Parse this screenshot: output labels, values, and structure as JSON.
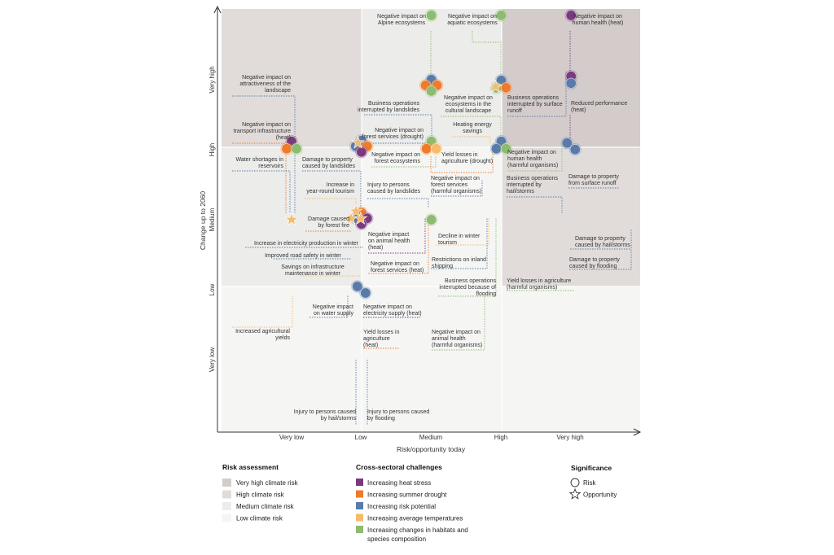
{
  "chart_data": {
    "type": "scatter",
    "title": "",
    "xlabel": "Risk/opportunity today",
    "ylabel": "Change up to 2060",
    "x_categories": [
      "Very low",
      "Low",
      "Medium",
      "High",
      "Very high"
    ],
    "y_categories": [
      "Very low",
      "Low",
      "Medium",
      "High",
      "Very high"
    ],
    "colors": {
      "zone_very_high": "#d3cccb",
      "zone_high": "#e1dcda",
      "zone_medium": "#ececea",
      "zone_low": "#f5f5f4",
      "heat": "#7b3a7e",
      "drought": "#ee7a2b",
      "risk": "#5a7aa8",
      "temp": "#f5bb6a",
      "habitat": "#8dbb70"
    },
    "legend": {
      "risk_assessment": {
        "title": "Risk assessment",
        "items": [
          {
            "label": "Very high climate risk",
            "color_key": "zone_very_high"
          },
          {
            "label": "High climate risk",
            "color_key": "zone_high"
          },
          {
            "label": "Medium climate risk",
            "color_key": "zone_medium"
          },
          {
            "label": "Low climate risk",
            "color_key": "zone_low"
          }
        ]
      },
      "challenges": {
        "title": "Cross-sectoral challenges",
        "items": [
          {
            "label": "Increasing heat stress",
            "color_key": "heat"
          },
          {
            "label": "Increasing summer drought",
            "color_key": "drought"
          },
          {
            "label": "Increasing risk potential",
            "color_key": "risk"
          },
          {
            "label": "Increasing average temperatures",
            "color_key": "temp"
          },
          {
            "label": "Increasing changes in habitats and",
            "label2": "species composition",
            "color_key": "habitat"
          }
        ]
      },
      "significance": {
        "title": "Significance",
        "items": [
          {
            "label": "Risk",
            "shape": "circle"
          },
          {
            "label": "Opportunity",
            "shape": "star"
          }
        ]
      }
    },
    "points": [
      {
        "x": 2.0,
        "y": 4.92,
        "kind": "risk",
        "colors": [
          "habitat"
        ]
      },
      {
        "x": 3.0,
        "y": 4.92,
        "kind": "risk",
        "colors": [
          "habitat"
        ]
      },
      {
        "x": 4.0,
        "y": 4.92,
        "kind": "risk",
        "colors": [
          "heat"
        ]
      },
      {
        "x": 2.0,
        "y": 3.92,
        "kind": "risk",
        "colors": [
          "risk",
          "drought",
          "drought",
          "habitat"
        ]
      },
      {
        "x": 3.0,
        "y": 3.92,
        "kind": "risk",
        "colors": [
          "risk",
          "habitat",
          "drought"
        ]
      },
      {
        "x": 2.92,
        "y": 3.9,
        "kind": "opportunity",
        "colors": [
          "temp"
        ]
      },
      {
        "x": 4.0,
        "y": 4.05,
        "kind": "risk",
        "colors": [
          "heat"
        ]
      },
      {
        "x": 4.0,
        "y": 3.95,
        "kind": "risk",
        "colors": [
          "risk"
        ]
      },
      {
        "x": 0.0,
        "y": 3.05,
        "kind": "risk",
        "colors": [
          "heat",
          "drought",
          "habitat"
        ]
      },
      {
        "x": 1.0,
        "y": 3.05,
        "kind": "risk",
        "colors": [
          "risk",
          "risk",
          "drought",
          "heat"
        ]
      },
      {
        "x": 0.95,
        "y": 3.1,
        "kind": "opportunity",
        "colors": [
          "temp"
        ]
      },
      {
        "x": 2.0,
        "y": 3.05,
        "kind": "risk",
        "colors": [
          "habitat",
          "drought",
          "temp"
        ]
      },
      {
        "x": 3.0,
        "y": 3.05,
        "kind": "risk",
        "colors": [
          "risk",
          "risk",
          "habitat"
        ]
      },
      {
        "x": 4.0,
        "y": 3.05,
        "kind": "risk",
        "colors": [
          "risk",
          "risk"
        ]
      },
      {
        "x": 1.0,
        "y": 2.02,
        "kind": "risk",
        "colors": [
          "drought",
          "risk",
          "heat",
          "heat"
        ]
      },
      {
        "x": 0.92,
        "y": 2.05,
        "kind": "opportunity",
        "colors": [
          "temp",
          "temp",
          "temp"
        ]
      },
      {
        "x": 2.0,
        "y": 2.0,
        "kind": "risk",
        "colors": [
          "habitat"
        ]
      },
      {
        "x": 0.0,
        "y": 2.0,
        "kind": "opportunity",
        "colors": [
          "temp"
        ]
      },
      {
        "x": 1.0,
        "y": 1.0,
        "kind": "risk",
        "colors": [
          "risk",
          "risk"
        ]
      }
    ],
    "annotations": [
      {
        "lines": [
          "Negative impact on",
          "Alpine ecosystems"
        ]
      },
      {
        "lines": [
          "Negative impact on",
          "aquatic ecosystems"
        ]
      },
      {
        "lines": [
          "Negative impact on",
          "human health (heat)"
        ]
      },
      {
        "lines": [
          "Negative impact on",
          "attractiveness of the",
          "landscape"
        ]
      },
      {
        "lines": [
          "Business operations",
          "interrupted by landslides"
        ]
      },
      {
        "lines": [
          "Negative impact on",
          "ecosystems in the",
          "cultural landscape"
        ]
      },
      {
        "lines": [
          "Business operations",
          "interrupted by surface",
          "runoff"
        ]
      },
      {
        "lines": [
          "Reduced performance",
          "(heat)"
        ]
      },
      {
        "lines": [
          "Negative impact on",
          "transport infrastructure",
          "(heat)"
        ]
      },
      {
        "lines": [
          "Heating energy",
          "savings"
        ]
      },
      {
        "lines": [
          "Negative impact on",
          "forest services (drought)"
        ]
      },
      {
        "lines": [
          "Negative impact on",
          "forest ecosystems"
        ]
      },
      {
        "lines": [
          "Yield losses in",
          "agriculture (drought)"
        ]
      },
      {
        "lines": [
          "Negative impact on",
          "human health",
          "(harmful organisms)"
        ]
      },
      {
        "lines": [
          "Water shortages in",
          "reservoirs"
        ]
      },
      {
        "lines": [
          "Damage to property",
          "caused by landslides"
        ]
      },
      {
        "lines": [
          "Damage to property",
          "from surface runoff"
        ]
      },
      {
        "lines": [
          "Negative impact on",
          "forest services",
          "(harmful organisms)"
        ]
      },
      {
        "lines": [
          "Business operations",
          "interrupted by",
          "hail/storms"
        ]
      },
      {
        "lines": [
          "Increase in",
          "year-round tourism"
        ]
      },
      {
        "lines": [
          "Injury to persons",
          "caused by landslides"
        ]
      },
      {
        "lines": [
          "Damage caused",
          "by forest fire"
        ]
      },
      {
        "lines": [
          "Negative impact",
          "on animal health",
          "(heat)"
        ]
      },
      {
        "lines": [
          "Decline in winter",
          "tourism"
        ]
      },
      {
        "lines": [
          "Damage to property",
          "caused by  hail/storms"
        ]
      },
      {
        "lines": [
          "Increase in electricity production in winter"
        ]
      },
      {
        "lines": [
          "Improved road safety in winter"
        ]
      },
      {
        "lines": [
          "Damage to property",
          "caused by flooding"
        ]
      },
      {
        "lines": [
          "Savings on infrastructure",
          "maintenance in winter"
        ]
      },
      {
        "lines": [
          "Negative impact on",
          "forest services (heat)"
        ]
      },
      {
        "lines": [
          "Restrictions on inland",
          "shipping"
        ]
      },
      {
        "lines": [
          "Business operations",
          "interrupted because of",
          "flooding"
        ]
      },
      {
        "lines": [
          "Yield losses in agriculture",
          "(harmful organisms)"
        ]
      },
      {
        "lines": [
          "Negative impact",
          "on water supply"
        ]
      },
      {
        "lines": [
          "Negative impact on",
          "electricity supply (heat)"
        ]
      },
      {
        "lines": [
          "Increased agricultural",
          "yields"
        ]
      },
      {
        "lines": [
          "Yield losses in",
          "agriculture",
          "(heat)"
        ]
      },
      {
        "lines": [
          "Negative impact on",
          "animal health",
          "(harmful organisms)"
        ]
      },
      {
        "lines": [
          "Injury to persons caused",
          "by hail/storms"
        ]
      },
      {
        "lines": [
          "Injury to persons caused",
          "by flooding"
        ]
      }
    ]
  }
}
